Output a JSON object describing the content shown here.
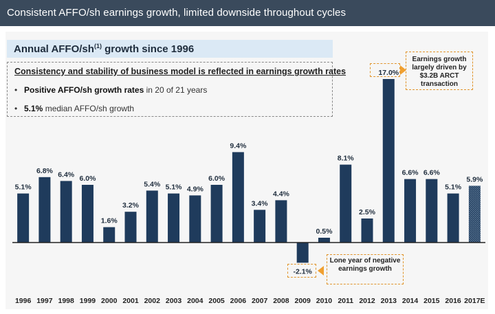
{
  "header": {
    "title": "Consistent AFFO/sh earnings growth, limited downside throughout cycles"
  },
  "subtitle": {
    "prefix": "Annual AFFO/sh",
    "sup": "(1)",
    "suffix": " growth since 1996"
  },
  "summary": {
    "heading": "Consistency and stability of business model is reflected in earnings growth rates",
    "bullet1_bold": "Positive AFFO/sh growth rates",
    "bullet1_rest": " in 20 of 21 years",
    "bullet2_bold": "5.1%",
    "bullet2_rest": " median AFFO/sh growth"
  },
  "callouts": {
    "arct": "Earnings growth largely driven by $3.2B ARCT transaction",
    "negative": "Lone year of negative earnings growth"
  },
  "colors": {
    "bar": "#1f3b5c",
    "callout": "#f0a030",
    "header": "#3a4a5c"
  },
  "chart_data": {
    "type": "bar",
    "categories": [
      "1996",
      "1997",
      "1998",
      "1999",
      "2000",
      "2001",
      "2002",
      "2003",
      "2004",
      "2005",
      "2006",
      "2007",
      "2008",
      "2009",
      "2010",
      "2011",
      "2012",
      "2013",
      "2014",
      "2015",
      "2016",
      "2017E"
    ],
    "values": [
      5.1,
      6.8,
      6.4,
      6.0,
      1.6,
      3.2,
      5.4,
      5.1,
      4.9,
      6.0,
      9.4,
      3.4,
      4.4,
      -2.1,
      0.5,
      8.1,
      2.5,
      17.0,
      6.6,
      6.6,
      5.1,
      5.9
    ],
    "labels": [
      "5.1%",
      "6.8%",
      "6.4%",
      "6.0%",
      "1.6%",
      "3.2%",
      "5.4%",
      "5.1%",
      "4.9%",
      "6.0%",
      "9.4%",
      "3.4%",
      "4.4%",
      "-2.1%",
      "0.5%",
      "8.1%",
      "2.5%",
      "17.0%",
      "6.6%",
      "6.6%",
      "5.1%",
      "5.9%"
    ],
    "estimate_category": "2017E",
    "title": "",
    "xlabel": "",
    "ylabel": "",
    "grid": false
  }
}
